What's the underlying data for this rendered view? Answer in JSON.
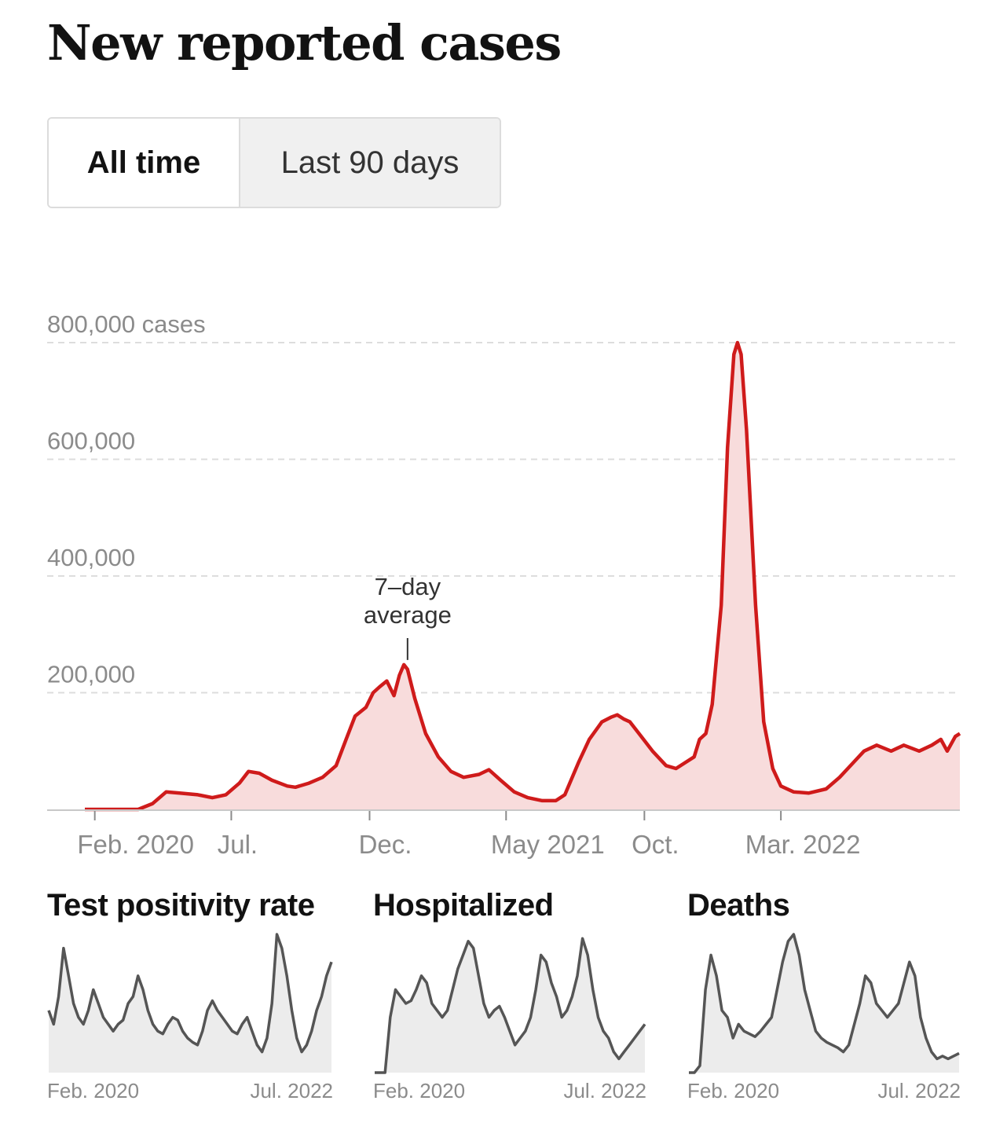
{
  "title": "New reported cases",
  "toggle": {
    "options": [
      "All time",
      "Last 90 days"
    ],
    "active": "All time"
  },
  "colors": {
    "accent": "#cf1b1b",
    "fill": "#f8dcdc",
    "mini_line": "#555555",
    "mini_fill": "#ececec",
    "grid": "#dddddd",
    "axis_text": "#8b8b8b"
  },
  "chart_data": [
    {
      "type": "area",
      "title": "New reported cases",
      "xlabel": "",
      "ylabel": "",
      "y_unit_label": "cases",
      "ytick_labels": [
        "800,000 cases",
        "600,000",
        "400,000",
        "200,000"
      ],
      "ytick_values": [
        800000,
        600000,
        400000,
        200000
      ],
      "ylim": [
        0,
        800000
      ],
      "xlim": [
        "2020-01-21",
        "2022-09-15"
      ],
      "xtick_labels": [
        "Feb. 2020",
        "Jul.",
        "Dec.",
        "May 2021",
        "Oct.",
        "Mar. 2022"
      ],
      "xtick_dates": [
        "2020-02-01",
        "2020-07-01",
        "2020-12-01",
        "2021-05-01",
        "2021-10-01",
        "2022-03-01"
      ],
      "grid": true,
      "annotation": {
        "text": [
          "7–day",
          "average"
        ],
        "date": "2021-01-12",
        "value": 248000
      },
      "series": [
        {
          "name": "7–day average",
          "x": [
            "2020-01-21",
            "2020-03-01",
            "2020-03-20",
            "2020-04-05",
            "2020-04-20",
            "2020-05-05",
            "2020-05-25",
            "2020-06-10",
            "2020-06-25",
            "2020-07-10",
            "2020-07-20",
            "2020-08-01",
            "2020-08-15",
            "2020-09-01",
            "2020-09-10",
            "2020-09-25",
            "2020-10-10",
            "2020-10-25",
            "2020-11-05",
            "2020-11-15",
            "2020-11-27",
            "2020-12-05",
            "2020-12-12",
            "2020-12-20",
            "2020-12-28",
            "2021-01-03",
            "2021-01-08",
            "2021-01-12",
            "2021-01-20",
            "2021-02-01",
            "2021-02-15",
            "2021-03-01",
            "2021-03-15",
            "2021-04-01",
            "2021-04-12",
            "2021-04-25",
            "2021-05-10",
            "2021-05-25",
            "2021-06-10",
            "2021-06-25",
            "2021-07-05",
            "2021-07-20",
            "2021-08-01",
            "2021-08-15",
            "2021-08-25",
            "2021-09-01",
            "2021-09-08",
            "2021-09-15",
            "2021-09-25",
            "2021-10-10",
            "2021-10-25",
            "2021-11-05",
            "2021-11-15",
            "2021-11-25",
            "2021-12-01",
            "2021-12-08",
            "2021-12-15",
            "2021-12-25",
            "2022-01-01",
            "2022-01-08",
            "2022-01-12",
            "2022-01-16",
            "2022-01-22",
            "2022-02-01",
            "2022-02-10",
            "2022-02-20",
            "2022-03-01",
            "2022-03-15",
            "2022-04-01",
            "2022-04-20",
            "2022-05-05",
            "2022-05-20",
            "2022-06-01",
            "2022-06-15",
            "2022-07-01",
            "2022-07-15",
            "2022-08-01",
            "2022-08-15",
            "2022-08-25",
            "2022-09-01",
            "2022-09-10",
            "2022-09-15"
          ],
          "values": [
            0,
            0,
            0,
            10000,
            30000,
            28000,
            25000,
            20000,
            25000,
            45000,
            65000,
            62000,
            50000,
            40000,
            38000,
            45000,
            55000,
            75000,
            120000,
            160000,
            175000,
            200000,
            210000,
            220000,
            195000,
            230000,
            248000,
            240000,
            190000,
            130000,
            90000,
            65000,
            55000,
            60000,
            68000,
            50000,
            30000,
            20000,
            15000,
            15000,
            25000,
            80000,
            120000,
            150000,
            158000,
            162000,
            155000,
            150000,
            130000,
            100000,
            75000,
            70000,
            80000,
            90000,
            120000,
            130000,
            180000,
            350000,
            620000,
            780000,
            800000,
            780000,
            650000,
            350000,
            150000,
            70000,
            40000,
            30000,
            28000,
            35000,
            55000,
            80000,
            100000,
            110000,
            100000,
            110000,
            100000,
            110000,
            120000,
            100000,
            125000,
            130000
          ]
        }
      ]
    },
    {
      "type": "area",
      "title": "Test positivity rate",
      "xtick_labels": [
        "Feb. 2020",
        "Jul. 2022"
      ],
      "series": [
        {
          "name": "",
          "values": [
            45,
            35,
            55,
            90,
            70,
            50,
            40,
            35,
            45,
            60,
            50,
            40,
            35,
            30,
            35,
            38,
            50,
            55,
            70,
            60,
            45,
            35,
            30,
            28,
            35,
            40,
            38,
            30,
            25,
            22,
            20,
            30,
            45,
            52,
            45,
            40,
            35,
            30,
            28,
            35,
            40,
            30,
            20,
            15,
            25,
            50,
            100,
            90,
            70,
            45,
            25,
            15,
            20,
            30,
            45,
            55,
            70,
            80
          ]
        }
      ]
    },
    {
      "type": "area",
      "title": "Hospitalized",
      "xtick_labels": [
        "Feb. 2020",
        "Jul. 2022"
      ],
      "series": [
        {
          "name": "",
          "values": [
            0,
            0,
            0,
            40,
            60,
            55,
            50,
            52,
            60,
            70,
            65,
            50,
            45,
            40,
            45,
            60,
            75,
            85,
            95,
            90,
            70,
            50,
            40,
            45,
            48,
            40,
            30,
            20,
            25,
            30,
            40,
            60,
            85,
            80,
            65,
            55,
            40,
            45,
            55,
            70,
            97,
            85,
            60,
            40,
            30,
            25,
            15,
            10,
            15,
            20,
            25,
            30,
            35
          ]
        }
      ]
    },
    {
      "type": "area",
      "title": "Deaths",
      "xtick_labels": [
        "Feb. 2020",
        "Jul. 2022"
      ],
      "series": [
        {
          "name": "",
          "values": [
            0,
            0,
            5,
            60,
            85,
            70,
            45,
            40,
            25,
            35,
            30,
            28,
            26,
            30,
            35,
            40,
            60,
            80,
            95,
            100,
            85,
            60,
            45,
            30,
            25,
            22,
            20,
            18,
            15,
            20,
            35,
            50,
            70,
            65,
            50,
            45,
            40,
            45,
            50,
            65,
            80,
            70,
            40,
            25,
            15,
            10,
            12,
            10,
            12,
            14
          ]
        }
      ]
    }
  ]
}
